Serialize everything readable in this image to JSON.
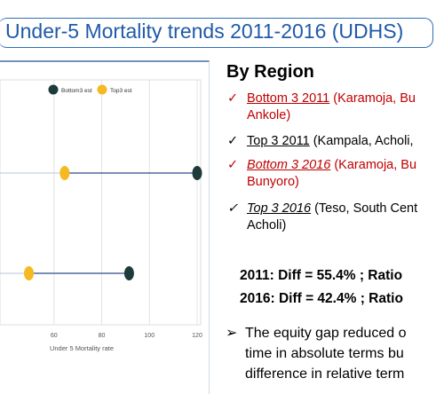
{
  "title": "Under-5 Mortality trends 2011-2016 (UDHS)",
  "chart_data": {
    "type": "dumbbell",
    "xlabel": "Under 5 Mortality rate",
    "xlim": [
      40,
      120
    ],
    "xticks": [
      60,
      80,
      100,
      120
    ],
    "legend": [
      {
        "name": "Bottom3 est",
        "color": "#1e3b3c"
      },
      {
        "name": "Top3 est",
        "color": "#f5b921"
      }
    ],
    "rows": [
      {
        "bottom3": 120,
        "top3": 64.5
      },
      {
        "bottom3": 91.5,
        "top3": 49.5
      }
    ],
    "colors": {
      "line": "#2c4b8c",
      "grid": "#e4e4e4"
    }
  },
  "panel": {
    "heading": "By Region",
    "items": [
      {
        "check": "✓",
        "pre": "Bottom 3  2011",
        "rest": " (Karamoja, Bu",
        "cont": "Ankole)"
      },
      {
        "check": "✓",
        "pre": "Top 3  2011",
        "rest": " (Kampala, Acholi,"
      },
      {
        "check": "✓",
        "pre": "Bottom 3  2016",
        "rest": " (Karamoja, Bu",
        "cont": "Bunyoro)"
      },
      {
        "check": "✓",
        "pre": "Top 3  2016",
        "rest": " (Teso, South Cent",
        "cont": "Acholi)"
      }
    ],
    "stat1": "2011: Diff = 55.4% ; Ratio",
    "stat2": "2016: Diff = 42.4% ; Ratio",
    "bullet": {
      "arrow": "➢",
      "line1": "The equity gap reduced o",
      "line2": "time in absolute terms bu",
      "line3": "difference in relative term"
    }
  }
}
